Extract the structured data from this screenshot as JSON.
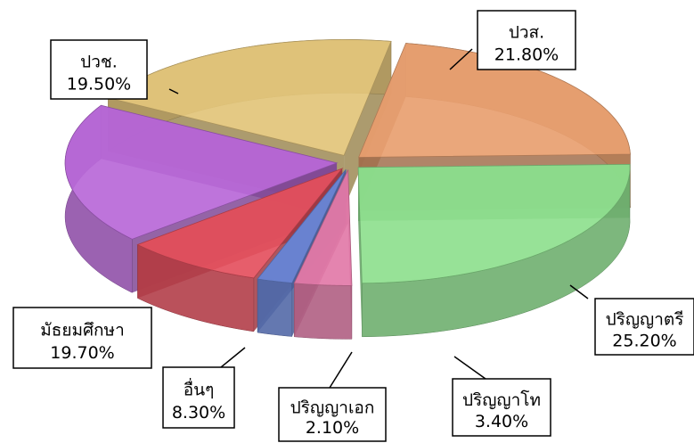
{
  "chart_data": {
    "type": "pie",
    "categories": [
      "ปวส.",
      "ปริญญาตรี",
      "ปริญญาโท",
      "ปริญญาเอก",
      "อื่นๆ",
      "มัธยมศึกษา",
      "ปวช."
    ],
    "values": [
      21.8,
      25.2,
      3.4,
      2.1,
      8.3,
      19.7,
      19.5
    ],
    "value_labels": [
      "21.80%",
      "25.20%",
      "3.40%",
      "2.10%",
      "8.30%",
      "19.70%",
      "19.50%"
    ],
    "colors": [
      "#e8a070",
      "#8ee08e",
      "#e27aa8",
      "#6a86d6",
      "#e4505e",
      "#b868d8",
      "#e2c47a"
    ]
  }
}
